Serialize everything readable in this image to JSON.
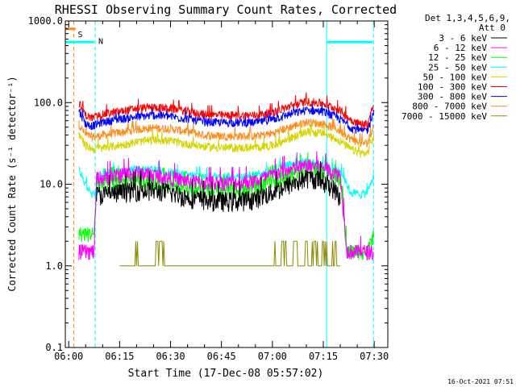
{
  "chart_data": {
    "type": "line",
    "title": "RHESSI Observing Summary Count Rates, Corrected",
    "xlabel": "Start Time (17-Dec-08 05:57:02)",
    "ylabel": "Corrected Count Rate (s⁻¹ detector⁻¹)",
    "yscale": "log",
    "ylim": [
      0.1,
      1000
    ],
    "xlim_minutes": [
      -1,
      94
    ],
    "x_ticks": [
      {
        "label": "06:00",
        "minute": 0
      },
      {
        "label": "06:15",
        "minute": 15
      },
      {
        "label": "06:30",
        "minute": 30
      },
      {
        "label": "06:45",
        "minute": 45
      },
      {
        "label": "07:00",
        "minute": 60
      },
      {
        "label": "07:15",
        "minute": 75
      },
      {
        "label": "07:30",
        "minute": 90
      }
    ],
    "y_ticks": [
      {
        "label": "0.1",
        "value": 0.1
      },
      {
        "label": "1.0",
        "value": 1
      },
      {
        "label": "10.0",
        "value": 10
      },
      {
        "label": "100.0",
        "value": 100
      },
      {
        "label": "1000.0",
        "value": 1000
      }
    ],
    "legend_header": [
      "Det 1,3,4,5,6,9,",
      "Att 0"
    ],
    "legend_position": "right, outside plot",
    "series": [
      {
        "name": "3 - 6 keV",
        "color": "#000000",
        "x": [
          8.2,
          10,
          15,
          20,
          25,
          30,
          35,
          40,
          45,
          50,
          55,
          60,
          65,
          70,
          72,
          75,
          78,
          80
        ],
        "y": [
          7.5,
          7.5,
          8,
          8.5,
          8.5,
          8,
          7,
          6.5,
          6.3,
          6.3,
          6.8,
          8,
          10,
          12,
          12,
          11,
          9,
          7
        ]
      },
      {
        "name": "6 - 12 keV",
        "color": "#ff00ff",
        "x": [
          3,
          6,
          7.5,
          8.2,
          10,
          15,
          20,
          25,
          30,
          35,
          40,
          45,
          50,
          55,
          60,
          65,
          70,
          75,
          80,
          82,
          88,
          90
        ],
        "y": [
          1.5,
          1.5,
          1.5,
          12,
          12,
          13,
          14,
          13,
          12,
          11,
          10.5,
          10.5,
          10.5,
          11,
          13,
          15,
          17,
          16,
          13,
          1.5,
          1.5,
          1.5
        ]
      },
      {
        "name": "12 - 25 keV",
        "color": "#00ff00",
        "x": [
          3,
          6,
          7.5,
          8.2,
          10,
          15,
          20,
          25,
          30,
          35,
          40,
          45,
          50,
          55,
          60,
          65,
          70,
          75,
          80,
          82,
          88,
          90
        ],
        "y": [
          2.5,
          2.5,
          2.5,
          10,
          10,
          11,
          11,
          10.5,
          10,
          9,
          8.5,
          8.5,
          8.5,
          9,
          11,
          13,
          16,
          15,
          12,
          1.5,
          1.5,
          2.5
        ]
      },
      {
        "name": "25 - 50 keV",
        "color": "#00ffff",
        "x": [
          3,
          5,
          7,
          8.5,
          10,
          15,
          20,
          25,
          30,
          35,
          40,
          45,
          50,
          55,
          60,
          65,
          70,
          75,
          80,
          83,
          86,
          88,
          90
        ],
        "y": [
          15,
          10,
          7.5,
          8.5,
          14,
          14.5,
          15,
          15,
          14,
          13,
          12.5,
          12.5,
          12.5,
          13,
          15,
          18,
          19,
          17,
          15,
          8,
          7.5,
          8,
          13
        ]
      },
      {
        "name": "50 - 100 keV",
        "color": "#d4d400",
        "x": [
          3,
          5,
          7,
          10,
          15,
          20,
          25,
          30,
          35,
          40,
          45,
          50,
          55,
          60,
          65,
          70,
          75,
          80,
          83,
          86,
          88,
          90
        ],
        "y": [
          40,
          30,
          27,
          28,
          30,
          33,
          35,
          34,
          31,
          29,
          28,
          28,
          28,
          30,
          36,
          44,
          42,
          34,
          27,
          24,
          24,
          40
        ]
      },
      {
        "name": "100 - 300 keV",
        "color": "#ff0000",
        "x": [
          3,
          5,
          7,
          10,
          15,
          20,
          25,
          30,
          35,
          40,
          45,
          50,
          55,
          60,
          65,
          70,
          75,
          80,
          83,
          86,
          88,
          90
        ],
        "y": [
          100,
          70,
          65,
          72,
          78,
          85,
          88,
          85,
          78,
          72,
          70,
          70,
          70,
          76,
          90,
          103,
          98,
          80,
          62,
          55,
          55,
          100
        ]
      },
      {
        "name": "300 - 800 keV",
        "color": "#0000ff",
        "x": [
          3,
          5,
          7,
          10,
          15,
          20,
          25,
          30,
          35,
          40,
          45,
          50,
          55,
          60,
          65,
          70,
          75,
          80,
          83,
          86,
          88,
          90
        ],
        "y": [
          80,
          55,
          52,
          58,
          63,
          67,
          70,
          68,
          63,
          58,
          57,
          57,
          57,
          62,
          72,
          81,
          78,
          63,
          50,
          45,
          46,
          80
        ]
      },
      {
        "name": "800 - 7000 keV",
        "color": "#ff8c1a",
        "x": [
          3,
          5,
          7,
          10,
          15,
          20,
          25,
          30,
          35,
          40,
          45,
          50,
          55,
          60,
          65,
          70,
          75,
          80,
          83,
          86,
          88,
          90
        ],
        "y": [
          55,
          40,
          38,
          40,
          43,
          47,
          49,
          48,
          44,
          40,
          39,
          39,
          39,
          42,
          50,
          58,
          55,
          45,
          36,
          32,
          32,
          55
        ]
      },
      {
        "name": "7000 - 15000 keV",
        "color": "#8b8b00",
        "x": [
          15,
          19,
          20,
          21,
          25,
          26,
          27,
          28,
          29,
          30,
          60,
          61,
          62,
          63,
          64,
          65,
          66,
          67,
          68,
          69,
          70,
          71,
          72,
          73,
          74,
          75,
          76,
          77,
          78,
          80
        ],
        "y": [
          1,
          1,
          2,
          1,
          1,
          2,
          2,
          2,
          1,
          1,
          1,
          2,
          1,
          2,
          2,
          1,
          2,
          2,
          1,
          2,
          2,
          1,
          2,
          2,
          1,
          2,
          2,
          1,
          2,
          1
        ]
      }
    ],
    "annotations": {
      "saa_label": "S",
      "night_label": "N",
      "saa_bar": {
        "from": -1,
        "to": 2,
        "value": 800,
        "color": "#ff8c1a"
      },
      "night_bars": [
        {
          "from": -1,
          "to": 7.5,
          "value": 550,
          "color": "#00ffff"
        },
        {
          "from": 76,
          "to": 89.5,
          "value": 550,
          "color": "#00ffff"
        }
      ],
      "vlines": [
        {
          "minute": -1,
          "color": "#00ffff",
          "dashed": false
        },
        {
          "minute": 1.5,
          "color": "#ff8c1a",
          "dashed": true
        },
        {
          "minute": 7.8,
          "color": "#00ffff",
          "dashed": true
        },
        {
          "minute": 76,
          "color": "#00ffff",
          "dashed": false
        },
        {
          "minute": 89.8,
          "color": "#00ffff",
          "dashed": true
        }
      ]
    }
  },
  "timestamp": "16-Oct-2021 07:51"
}
